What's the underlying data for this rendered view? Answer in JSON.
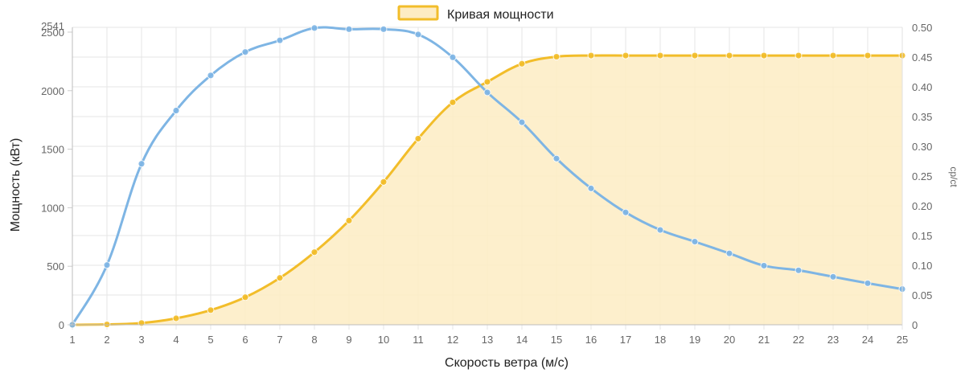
{
  "chart_data": {
    "type": "line",
    "x": [
      1,
      2,
      3,
      4,
      5,
      6,
      7,
      8,
      9,
      10,
      11,
      12,
      13,
      14,
      15,
      16,
      17,
      18,
      19,
      20,
      21,
      22,
      23,
      24,
      25
    ],
    "xlabel": "Скорость ветра (м/с)",
    "ylabel": "Мощность (кВт)",
    "y2label": "cp/ct",
    "ylim": [
      0,
      2541
    ],
    "y_ticks": [
      "0",
      "500",
      "1000",
      "1500",
      "2000",
      "2500"
    ],
    "y_max_label": "2541",
    "y2lim": [
      0,
      0.5
    ],
    "y2_ticks": [
      "0",
      "0.05",
      "0.10",
      "0.15",
      "0.20",
      "0.25",
      "0.30",
      "0.35",
      "0.40",
      "0.45",
      "0.50"
    ],
    "grid": true,
    "legend_position": "top-center",
    "series": [
      {
        "name": "Кривая мощности",
        "axis": "left",
        "type": "area",
        "color": "#f2bd2a",
        "fill": "#fdecc3",
        "values": [
          0,
          3,
          15,
          55,
          125,
          235,
          400,
          620,
          890,
          1220,
          1590,
          1900,
          2075,
          2230,
          2290,
          2300,
          2300,
          2300,
          2300,
          2300,
          2300,
          2300,
          2300,
          2300,
          2300
        ]
      },
      {
        "axis": "left",
        "type": "line",
        "color": "#7eb5e4",
        "values": [
          0,
          510,
          1375,
          1830,
          2130,
          2330,
          2430,
          2535,
          2525,
          2525,
          2480,
          2285,
          1985,
          1730,
          1420,
          1165,
          960,
          810,
          710,
          610,
          505,
          465,
          410,
          355,
          305
        ]
      }
    ]
  }
}
